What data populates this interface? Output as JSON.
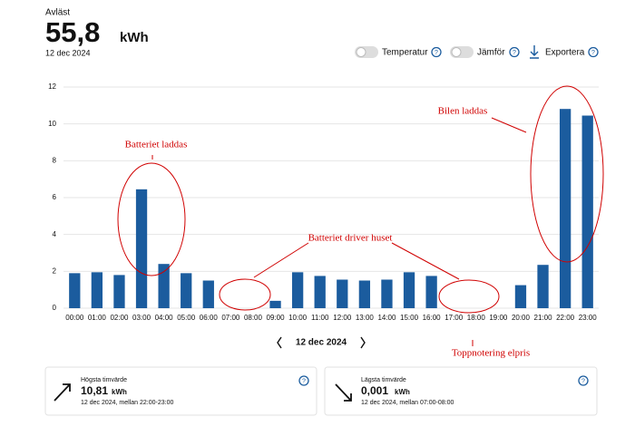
{
  "header": {
    "label": "Avläst",
    "value": "55,8",
    "unit": "kWh",
    "date": "12 dec 2024"
  },
  "controls": {
    "temperature": "Temperatur",
    "compare": "Jämför",
    "export": "Exportera"
  },
  "chart_data": {
    "type": "bar",
    "categories": [
      "00:00",
      "01:00",
      "02:00",
      "03:00",
      "04:00",
      "05:00",
      "06:00",
      "07:00",
      "08:00",
      "09:00",
      "10:00",
      "11:00",
      "12:00",
      "13:00",
      "14:00",
      "15:00",
      "16:00",
      "17:00",
      "18:00",
      "19:00",
      "20:00",
      "21:00",
      "22:00",
      "23:00"
    ],
    "values": [
      1.9,
      1.95,
      1.8,
      6.45,
      2.4,
      1.9,
      1.5,
      0.001,
      null,
      0.4,
      1.95,
      1.75,
      1.55,
      1.5,
      1.55,
      1.95,
      1.75,
      null,
      null,
      null,
      1.25,
      2.35,
      10.81,
      10.45
    ],
    "color": "#1b5c9e",
    "ylim": [
      0,
      12
    ],
    "yticks": [
      0,
      2,
      4,
      6,
      8,
      10,
      12
    ],
    "grid": true,
    "annotations": [
      "Batteriet  laddas",
      "Bilen  laddas",
      "Batteriet  driver huset",
      "Toppnotering  elpris"
    ]
  },
  "nav": {
    "date": "12 dec 2024"
  },
  "cards": [
    {
      "title": "Högsta timvärde",
      "value": "10,81",
      "unit": "kWh",
      "detail": "12 dec 2024, mellan 22:00-23:00"
    },
    {
      "title": "Lägsta timvärde",
      "value": "0,001",
      "unit": "kWh",
      "detail": "12 dec 2024, mellan 07:00-08:00"
    }
  ]
}
